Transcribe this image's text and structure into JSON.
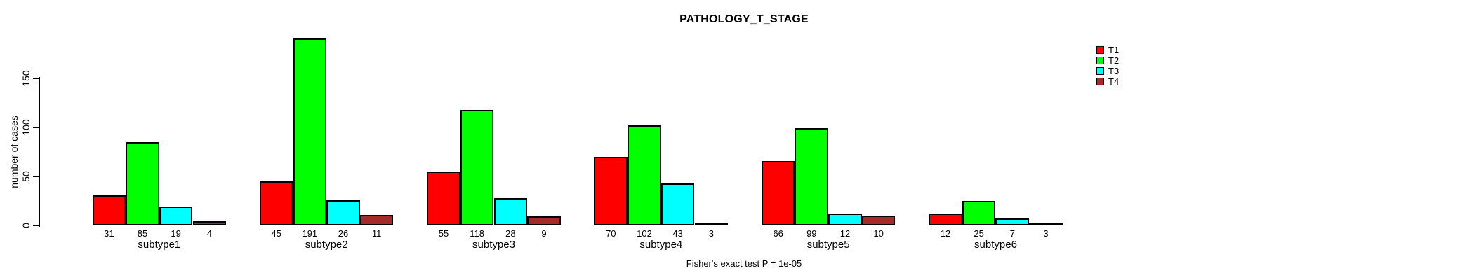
{
  "chart_data": {
    "type": "bar",
    "title": "PATHOLOGY_T_STAGE",
    "ylabel": "number of cases",
    "xlabel": "",
    "footnote": "Fisher's exact test P = 1e-05",
    "categories": [
      "subtype1",
      "subtype2",
      "subtype3",
      "subtype4",
      "subtype5",
      "subtype6"
    ],
    "series": [
      {
        "name": "T1",
        "color": "#ff0000",
        "values": [
          31,
          45,
          55,
          70,
          66,
          12
        ]
      },
      {
        "name": "T2",
        "color": "#00ff00",
        "values": [
          85,
          191,
          118,
          102,
          99,
          25
        ]
      },
      {
        "name": "T3",
        "color": "#00ffff",
        "values": [
          19,
          26,
          28,
          43,
          12,
          7
        ]
      },
      {
        "name": "T4",
        "color": "#a52a2a",
        "values": [
          4,
          11,
          9,
          3,
          10,
          3
        ]
      }
    ],
    "y_ticks": [
      0,
      50,
      100,
      150
    ],
    "ylim": [
      0,
      150
    ],
    "grid": false,
    "legend_position": "top-right",
    "value_labels_under_bars": true,
    "bar_border_color": "#000000",
    "background_color": "#ffffff"
  }
}
